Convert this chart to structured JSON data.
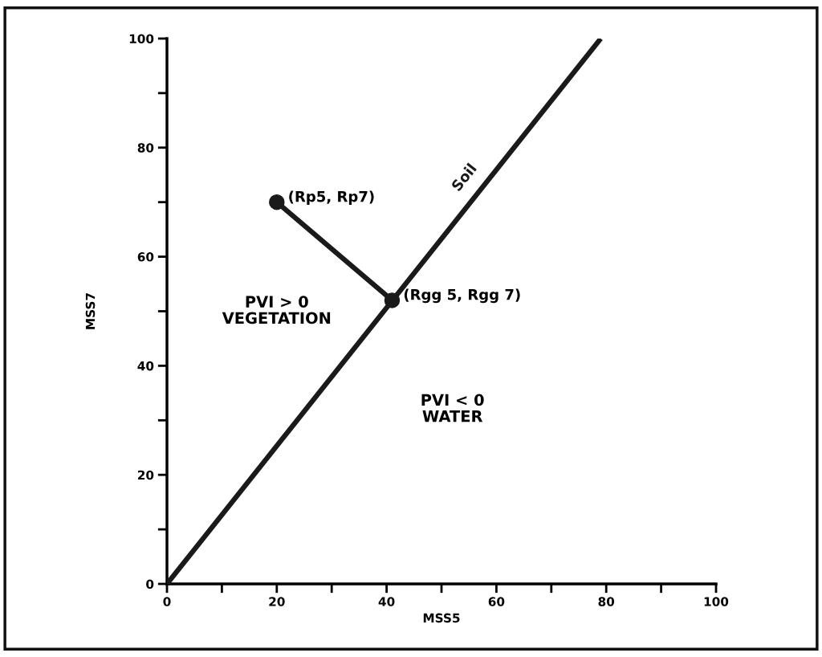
{
  "chart_data": {
    "type": "line",
    "xlabel": "MSS5",
    "ylabel": "MSS7",
    "xlim": [
      0,
      100
    ],
    "ylim": [
      0,
      100
    ],
    "xticks": [
      0,
      {
        "value": 10,
        "label": null
      },
      20,
      {
        "value": 30,
        "label": null
      },
      40,
      {
        "value": 50,
        "label": null
      },
      60,
      {
        "value": 70,
        "label": null
      },
      80,
      {
        "value": 90,
        "label": null
      },
      100
    ],
    "yticks": [
      0,
      {
        "value": 10,
        "label": null
      },
      20,
      {
        "value": 30,
        "label": null
      },
      40,
      {
        "value": 50,
        "label": null
      },
      60,
      {
        "value": 70,
        "label": null
      },
      80,
      {
        "value": 90,
        "label": null
      },
      100
    ],
    "grid": false,
    "legend": false,
    "series": [
      {
        "name": "Soil",
        "color": "#1a1a1a",
        "x": [
          0,
          79
        ],
        "values": [
          0,
          100
        ]
      },
      {
        "color": "#1a1a1a",
        "x": [
          20,
          41
        ],
        "values": [
          70,
          52
        ],
        "marker": "circle"
      }
    ],
    "annotations": [
      {
        "text": "(Rp5, Rp7)",
        "x": 20,
        "y": 70
      },
      {
        "text": "(Rgg 5, Rgg 7)",
        "x": 41,
        "y": 52
      },
      "PVI > 0\nVEGETATION",
      "PVI < 0\nWATER"
    ]
  }
}
